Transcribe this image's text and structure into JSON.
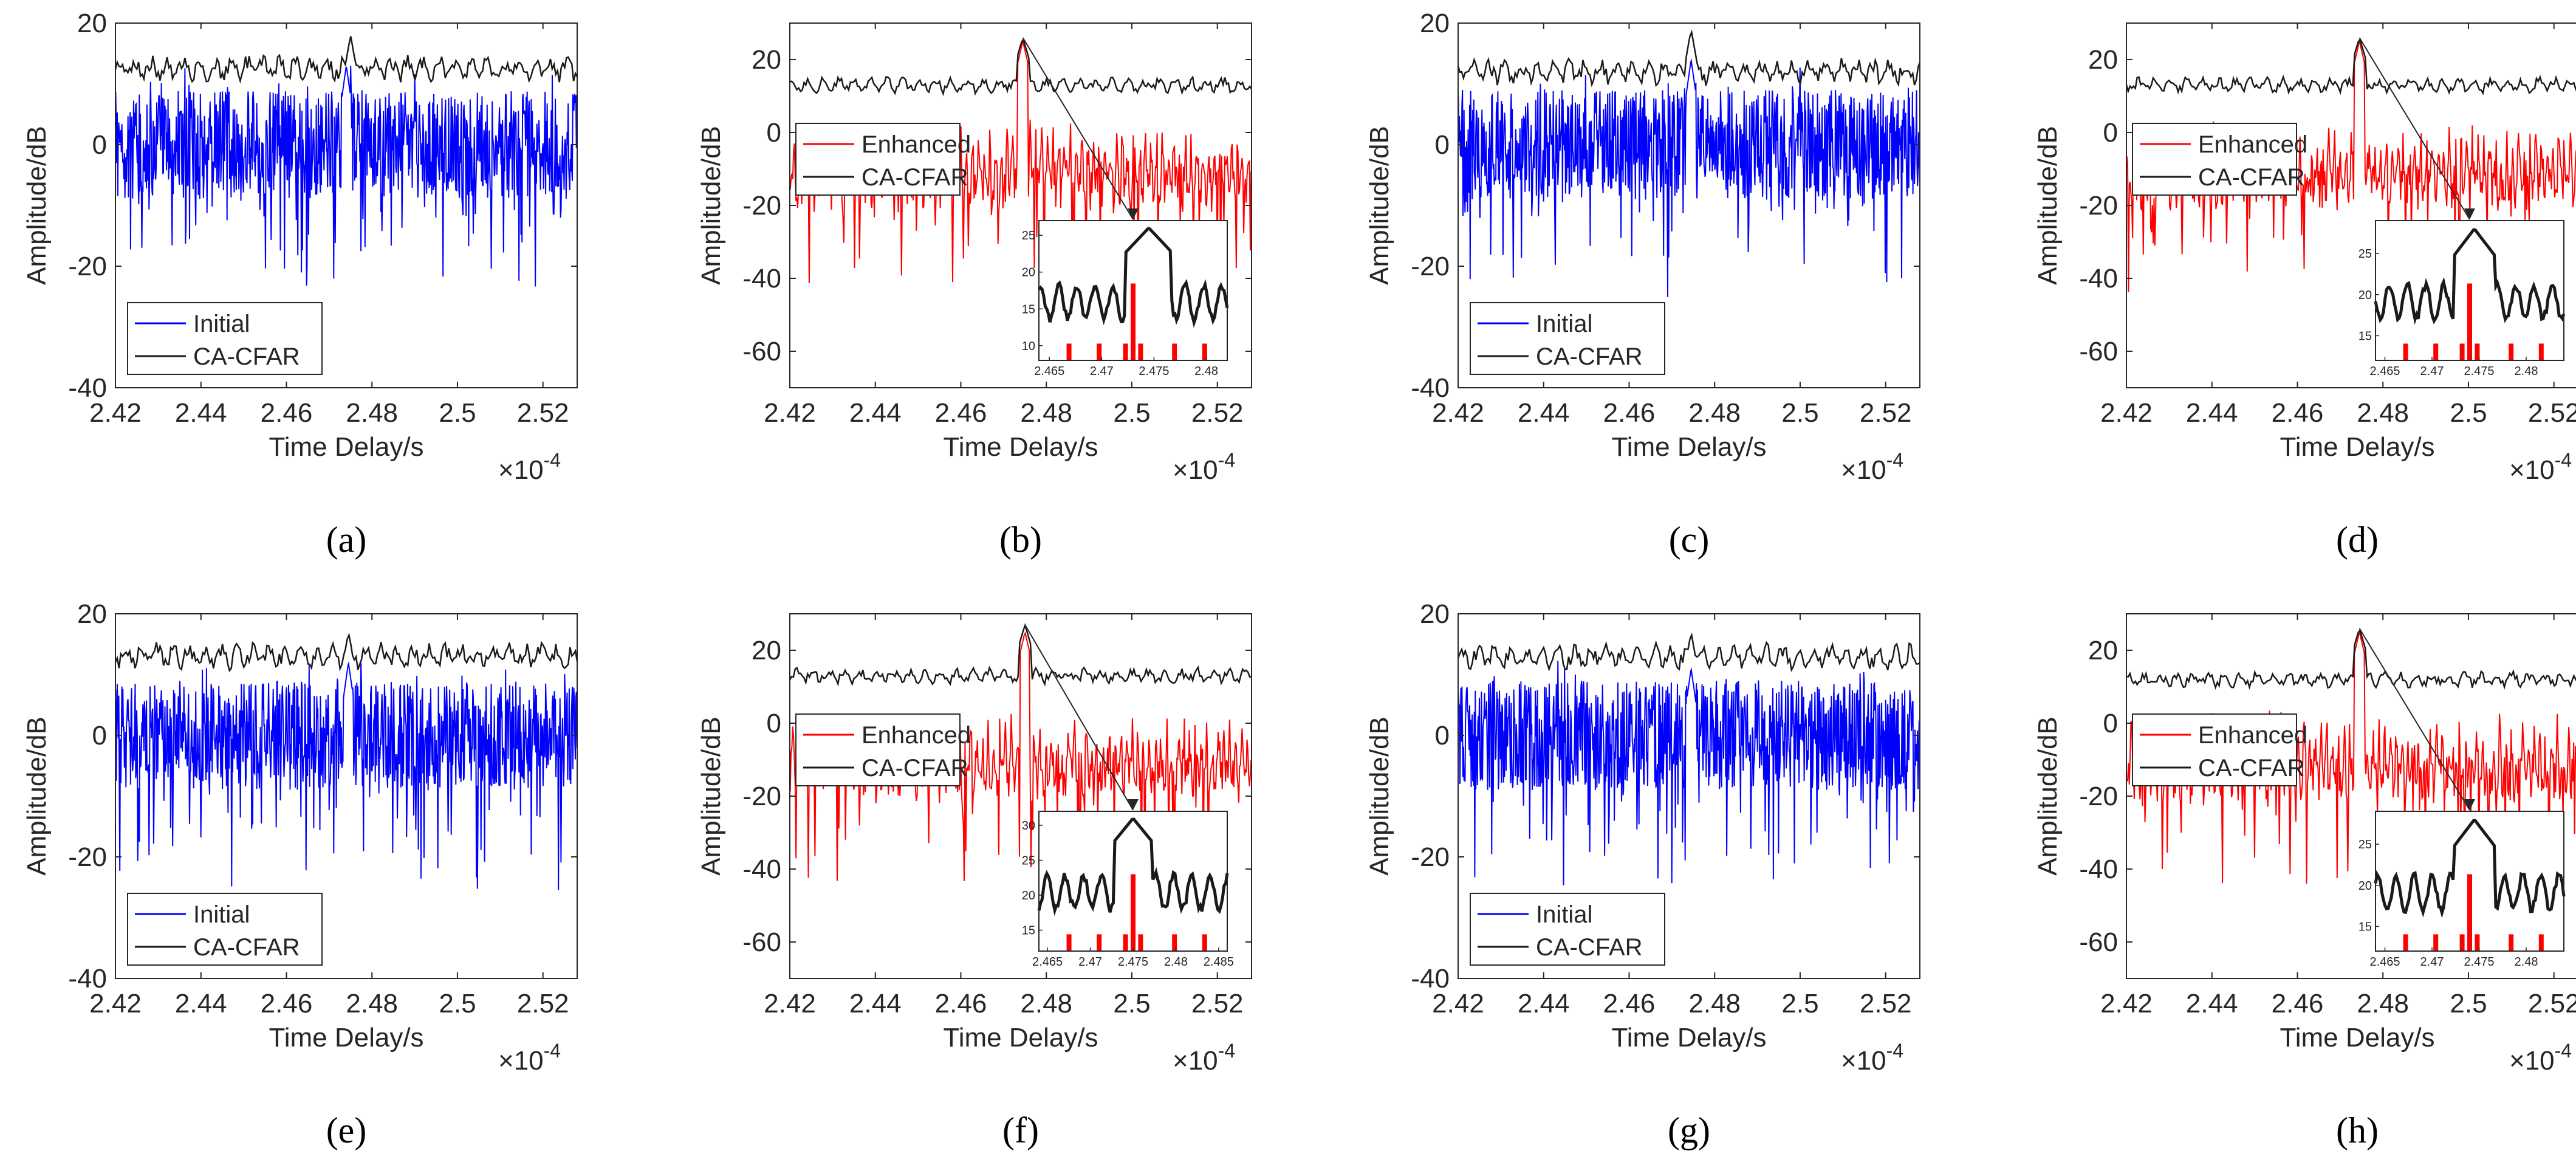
{
  "colors": {
    "initial": "#0000ff",
    "enhanced": "#ff0000",
    "cfar": "#1a1a1a",
    "axis": "#262626"
  },
  "chart_data": [
    {
      "panel": "a",
      "caption": "(a)",
      "type": "line",
      "series_kind": "initial",
      "xlim": [
        2.42,
        2.528
      ],
      "ylim": [
        -40,
        20
      ],
      "xticks": [
        "2.42",
        "2.44",
        "2.46",
        "2.48",
        "2.5",
        "2.52"
      ],
      "yticks": [
        "-40",
        "-20",
        "0",
        "20"
      ],
      "xlabel": "Time Delay/s",
      "ylabel": "Amplitude/dB",
      "x_exponent": "×10",
      "x_exponent_power": "-4",
      "legend": [
        "Initial",
        "CA-CFAR"
      ],
      "series": [
        {
          "name": "Initial",
          "signal_level_db": 0,
          "signal_floor_db": -22,
          "peak_x": 2.474,
          "peak_db": 13
        },
        {
          "name": "CA-CFAR",
          "threshold_level_db": 12.5,
          "threshold_max_db": 18,
          "peak_x": 2.475
        }
      ]
    },
    {
      "panel": "b",
      "caption": "(b)",
      "type": "line",
      "series_kind": "enhanced",
      "xlim": [
        2.42,
        2.528
      ],
      "ylim": [
        -70,
        30
      ],
      "xticks": [
        "2.42",
        "2.44",
        "2.46",
        "2.48",
        "2.5",
        "2.52"
      ],
      "yticks": [
        "-60",
        "-40",
        "-20",
        "0",
        "20"
      ],
      "xlabel": "Time Delay/s",
      "ylabel": "Amplitude/dB",
      "x_exponent": "×10",
      "x_exponent_power": "-4",
      "legend": [
        "Enhanced",
        "CA-CFAR"
      ],
      "series": [
        {
          "name": "Enhanced",
          "signal_level_db": 0,
          "signal_floor_db": -45,
          "peak_x": 2.4745,
          "peak_db": 25
        },
        {
          "name": "CA-CFAR",
          "threshold_level_db": 13,
          "threshold_max_db": 26,
          "peak_x": 2.4745
        }
      ],
      "inset": {
        "xlim": [
          2.464,
          2.482
        ],
        "ylim": [
          8,
          27
        ],
        "xticks": [
          "2.465",
          "2.47",
          "2.475",
          "2.48"
        ],
        "yticks": [
          "10",
          "15",
          "20",
          "25"
        ]
      }
    },
    {
      "panel": "c",
      "caption": "(c)",
      "type": "line",
      "series_kind": "initial",
      "xlim": [
        2.42,
        2.528
      ],
      "ylim": [
        -40,
        20
      ],
      "xticks": [
        "2.42",
        "2.44",
        "2.46",
        "2.48",
        "2.5",
        "2.52"
      ],
      "yticks": [
        "-40",
        "-20",
        "0",
        "20"
      ],
      "xlabel": "Time Delay/s",
      "ylabel": "Amplitude/dB",
      "x_exponent": "×10",
      "x_exponent_power": "-4",
      "legend": [
        "Initial",
        "CA-CFAR"
      ],
      "series": [
        {
          "name": "Initial",
          "signal_level_db": 0,
          "signal_floor_db": -22,
          "peak_x": 2.4745,
          "peak_db": 14
        },
        {
          "name": "CA-CFAR",
          "threshold_level_db": 12,
          "threshold_max_db": 19,
          "peak_x": 2.4745
        }
      ]
    },
    {
      "panel": "d",
      "caption": "(d)",
      "type": "line",
      "series_kind": "enhanced",
      "xlim": [
        2.42,
        2.528
      ],
      "ylim": [
        -70,
        30
      ],
      "xticks": [
        "2.42",
        "2.44",
        "2.46",
        "2.48",
        "2.5",
        "2.52"
      ],
      "yticks": [
        "-60",
        "-40",
        "-20",
        "0",
        "20"
      ],
      "xlabel": "Time Delay/s",
      "ylabel": "Amplitude/dB",
      "x_exponent": "×10",
      "x_exponent_power": "-4",
      "legend": [
        "Enhanced",
        "CA-CFAR"
      ],
      "series": [
        {
          "name": "Enhanced",
          "signal_level_db": 0,
          "signal_floor_db": -45,
          "peak_x": 2.4745,
          "peak_db": 25
        },
        {
          "name": "CA-CFAR",
          "threshold_level_db": 13,
          "threshold_max_db": 26,
          "peak_x": 2.4745
        }
      ],
      "inset": {
        "xlim": [
          2.464,
          2.484
        ],
        "ylim": [
          12,
          29
        ],
        "xticks": [
          "2.465",
          "2.47",
          "2.475",
          "2.48"
        ],
        "yticks": [
          "15",
          "20",
          "25"
        ]
      }
    },
    {
      "panel": "e",
      "caption": "(e)",
      "type": "line",
      "series_kind": "initial",
      "xlim": [
        2.42,
        2.528
      ],
      "ylim": [
        -40,
        20
      ],
      "xticks": [
        "2.42",
        "2.44",
        "2.46",
        "2.48",
        "2.5",
        "2.52"
      ],
      "yticks": [
        "-40",
        "-20",
        "0",
        "20"
      ],
      "xlabel": "Time Delay/s",
      "ylabel": "Amplitude/dB",
      "x_exponent": "×10",
      "x_exponent_power": "-4",
      "legend": [
        "Initial",
        "CA-CFAR"
      ],
      "series": [
        {
          "name": "Initial",
          "signal_level_db": 0,
          "signal_floor_db": -22,
          "peak_x": 2.4745,
          "peak_db": 12
        },
        {
          "name": "CA-CFAR",
          "threshold_level_db": 13,
          "threshold_max_db": 17,
          "peak_x": 2.4745
        }
      ]
    },
    {
      "panel": "f",
      "caption": "(f)",
      "type": "line",
      "series_kind": "enhanced",
      "xlim": [
        2.42,
        2.528
      ],
      "ylim": [
        -70,
        30
      ],
      "xticks": [
        "2.42",
        "2.44",
        "2.46",
        "2.48",
        "2.5",
        "2.52"
      ],
      "yticks": [
        "-60",
        "-40",
        "-20",
        "0",
        "20"
      ],
      "xlabel": "Time Delay/s",
      "ylabel": "Amplitude/dB",
      "x_exponent": "×10",
      "x_exponent_power": "-4",
      "legend": [
        "Enhanced",
        "CA-CFAR"
      ],
      "series": [
        {
          "name": "Enhanced",
          "signal_level_db": 0,
          "signal_floor_db": -45,
          "peak_x": 2.475,
          "peak_db": 25
        },
        {
          "name": "CA-CFAR",
          "threshold_level_db": 13,
          "threshold_max_db": 27,
          "peak_x": 2.475
        }
      ],
      "inset": {
        "xlim": [
          2.464,
          2.486
        ],
        "ylim": [
          12,
          32
        ],
        "xticks": [
          "2.465",
          "2.47",
          "2.475",
          "2.48",
          "2.485"
        ],
        "yticks": [
          "15",
          "20",
          "25",
          "30"
        ]
      }
    },
    {
      "panel": "g",
      "caption": "(g)",
      "type": "line",
      "series_kind": "initial",
      "xlim": [
        2.42,
        2.528
      ],
      "ylim": [
        -40,
        20
      ],
      "xticks": [
        "2.42",
        "2.44",
        "2.46",
        "2.48",
        "2.5",
        "2.52"
      ],
      "yticks": [
        "-40",
        "-20",
        "0",
        "20"
      ],
      "xlabel": "Time Delay/s",
      "ylabel": "Amplitude/dB",
      "x_exponent": "×10",
      "x_exponent_power": "-4",
      "legend": [
        "Initial",
        "CA-CFAR"
      ],
      "series": [
        {
          "name": "Initial",
          "signal_level_db": 0,
          "signal_floor_db": -22,
          "peak_x": 2.4745,
          "peak_db": 11
        },
        {
          "name": "CA-CFAR",
          "threshold_level_db": 13,
          "threshold_max_db": 17,
          "peak_x": 2.4745
        }
      ]
    },
    {
      "panel": "h",
      "caption": "(h)",
      "type": "line",
      "series_kind": "enhanced",
      "xlim": [
        2.42,
        2.528
      ],
      "ylim": [
        -70,
        30
      ],
      "xticks": [
        "2.42",
        "2.44",
        "2.46",
        "2.48",
        "2.5",
        "2.52"
      ],
      "yticks": [
        "-60",
        "-40",
        "-20",
        "0",
        "20"
      ],
      "xlabel": "Time Delay/s",
      "ylabel": "Amplitude/dB",
      "x_exponent": "×10",
      "x_exponent_power": "-4",
      "legend": [
        "Enhanced",
        "CA-CFAR"
      ],
      "series": [
        {
          "name": "Enhanced",
          "signal_level_db": 0,
          "signal_floor_db": -45,
          "peak_x": 2.4745,
          "peak_db": 25
        },
        {
          "name": "CA-CFAR",
          "threshold_level_db": 12,
          "threshold_max_db": 26,
          "peak_x": 2.4745
        }
      ],
      "inset": {
        "xlim": [
          2.464,
          2.484
        ],
        "ylim": [
          12,
          29
        ],
        "xticks": [
          "2.465",
          "2.47",
          "2.475",
          "2.48"
        ],
        "yticks": [
          "15",
          "20",
          "25"
        ]
      }
    }
  ]
}
